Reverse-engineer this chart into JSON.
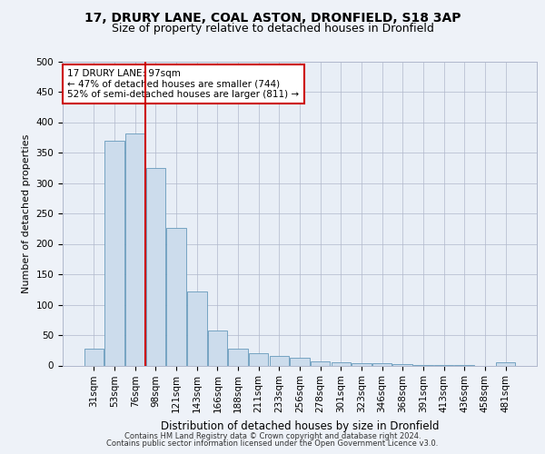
{
  "title_line1": "17, DRURY LANE, COAL ASTON, DRONFIELD, S18 3AP",
  "title_line2": "Size of property relative to detached houses in Dronfield",
  "xlabel": "Distribution of detached houses by size in Dronfield",
  "ylabel": "Number of detached properties",
  "footer_line1": "Contains HM Land Registry data © Crown copyright and database right 2024.",
  "footer_line2": "Contains public sector information licensed under the Open Government Licence v3.0.",
  "bins": [
    "31sqm",
    "53sqm",
    "76sqm",
    "98sqm",
    "121sqm",
    "143sqm",
    "166sqm",
    "188sqm",
    "211sqm",
    "233sqm",
    "256sqm",
    "278sqm",
    "301sqm",
    "323sqm",
    "346sqm",
    "368sqm",
    "391sqm",
    "413sqm",
    "436sqm",
    "458sqm",
    "481sqm"
  ],
  "bar_heights": [
    27,
    370,
    382,
    325,
    226,
    121,
    57,
    27,
    20,
    15,
    12,
    7,
    5,
    4,
    3,
    2,
    1,
    1,
    1,
    0,
    5
  ],
  "bar_color": "#ccdcec",
  "bar_edge_color": "#6699bb",
  "vline_color": "#cc0000",
  "ylim": [
    0,
    500
  ],
  "yticks": [
    0,
    50,
    100,
    150,
    200,
    250,
    300,
    350,
    400,
    450,
    500
  ],
  "annotation_text": "17 DRURY LANE: 97sqm\n← 47% of detached houses are smaller (744)\n52% of semi-detached houses are larger (811) →",
  "annotation_box_color": "#ffffff",
  "annotation_box_edge_color": "#cc0000",
  "background_color": "#eef2f8",
  "plot_background_color": "#e8eef6",
  "grid_color": "#b0b8cc",
  "title1_fontsize": 10,
  "title2_fontsize": 9,
  "ylabel_fontsize": 8,
  "xlabel_fontsize": 8.5,
  "tick_fontsize": 7.5,
  "footer_fontsize": 6,
  "annot_fontsize": 7.5
}
